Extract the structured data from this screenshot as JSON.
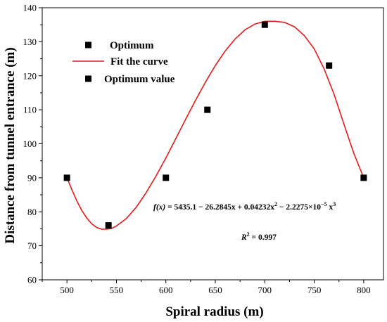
{
  "chart_data": {
    "type": "scatter",
    "title": "",
    "xlabel": "Spiral radius (m)",
    "ylabel": "Distance from tunnel entrance (m)",
    "xlim": [
      475,
      820
    ],
    "ylim": [
      60,
      140
    ],
    "x_ticks": [
      500,
      550,
      600,
      650,
      700,
      750,
      800
    ],
    "y_ticks": [
      60,
      70,
      80,
      90,
      100,
      110,
      120,
      130,
      140
    ],
    "grid": false,
    "legend_position": "top-left",
    "legend": [
      {
        "label": "Optimum",
        "marker": "square"
      },
      {
        "label": "Fit the curve",
        "marker": "line"
      },
      {
        "label": "Optimum value",
        "marker": "square"
      }
    ],
    "series": [
      {
        "name": "Optimum",
        "kind": "scatter",
        "color": "#000000",
        "x": [
          500,
          542,
          600,
          642,
          700,
          765,
          800
        ],
        "y": [
          90,
          76,
          90,
          110,
          135,
          123,
          90
        ]
      },
      {
        "name": "Fit the curve",
        "kind": "line",
        "color": "#e31a1c",
        "x": [
          500,
          505,
          510,
          515,
          520,
          525,
          530,
          535,
          540,
          545,
          550,
          560,
          570,
          580,
          590,
          600,
          610,
          620,
          630,
          640,
          650,
          660,
          670,
          680,
          690,
          700,
          710,
          720,
          730,
          740,
          750,
          760,
          770,
          780,
          790,
          800
        ],
        "y": [
          90,
          86.5,
          83.2,
          80.4,
          78.2,
          76.5,
          75.4,
          74.9,
          74.9,
          75.1,
          75.8,
          78.0,
          81.3,
          85.6,
          90.5,
          95.8,
          101.5,
          107.2,
          112.8,
          118.1,
          123.0,
          127.3,
          130.8,
          133.5,
          135.2,
          136.0,
          136.0,
          135.7,
          134.4,
          131.8,
          127.9,
          122.0,
          114.6,
          105.8,
          97.2,
          90
        ]
      }
    ],
    "annotations": {
      "formula": {
        "fx": "f(x)",
        "mid": " = 5435.1 − 26.2845x + 0.04232x",
        "exp1": "2",
        "mid2": " − 2.2275×10",
        "exp2": "−5",
        "end": " x",
        "exp3": "3"
      },
      "r2": {
        "label": "R",
        "exp": "2",
        "value": " = 0.997"
      }
    }
  }
}
